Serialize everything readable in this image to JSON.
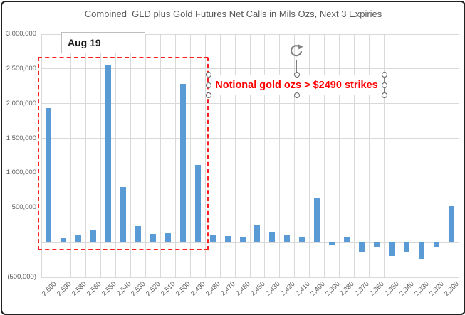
{
  "title": "Combined  GLD plus Gold Futures Net Calls in Mils Ozs, Next 3 Expiries",
  "callouts": {
    "aug19_label": "Aug 19",
    "notional_note": "Notional gold ozs > $2490 strikes"
  },
  "icons": {
    "rotate_handle": "rotate-icon",
    "selection_handles": "resize-handle-circles"
  },
  "colors": {
    "bar": "#5b9bd5",
    "grid": "#d9d9d9",
    "axis_text": "#595959",
    "highlight_box": "#ff2020",
    "note_text": "#ff0000",
    "handle_stroke": "#666666"
  },
  "chart_data": {
    "type": "bar",
    "title": "Combined GLD plus Gold Futures Net Calls in Mils Ozs, Next 3 Expiries",
    "xlabel": "",
    "ylabel": "",
    "legend": false,
    "grid": true,
    "ylim": [
      -500000,
      3000000
    ],
    "categories": [
      "2,600",
      "2,590",
      "2,580",
      "2,560",
      "2,550",
      "2,540",
      "2,530",
      "2,520",
      "2,510",
      "2,500",
      "2,490",
      "2,480",
      "2,470",
      "2,460",
      "2,450",
      "2,430",
      "2,420",
      "2,410",
      "2,400",
      "2,390",
      "2,380",
      "2,370",
      "2,360",
      "2,350",
      "2,340",
      "2,330",
      "2,320",
      "2,300"
    ],
    "values": [
      1940000,
      60000,
      100000,
      190000,
      2550000,
      800000,
      240000,
      120000,
      140000,
      2280000,
      1120000,
      110000,
      90000,
      70000,
      260000,
      150000,
      110000,
      75000,
      640000,
      -40000,
      70000,
      -140000,
      -70000,
      -190000,
      -140000,
      -230000,
      -70000,
      520000
    ],
    "y_tick_labels": [
      "3,000,000",
      "2,500,000",
      "2,000,000",
      "1,500,000",
      "1,000,000",
      "500,000",
      "-",
      "(500,000)"
    ],
    "y_tick_values": [
      3000000,
      2500000,
      2000000,
      1500000,
      1000000,
      500000,
      0,
      -500000
    ],
    "annotations": [
      {
        "text": "Aug 19",
        "kind": "label-box"
      },
      {
        "text": "Notional gold ozs > $2490 strikes",
        "kind": "selected-textbox"
      }
    ],
    "highlight_region": {
      "from_category": "2,600",
      "to_category": "2,490",
      "style": "red-dashed-box"
    }
  }
}
